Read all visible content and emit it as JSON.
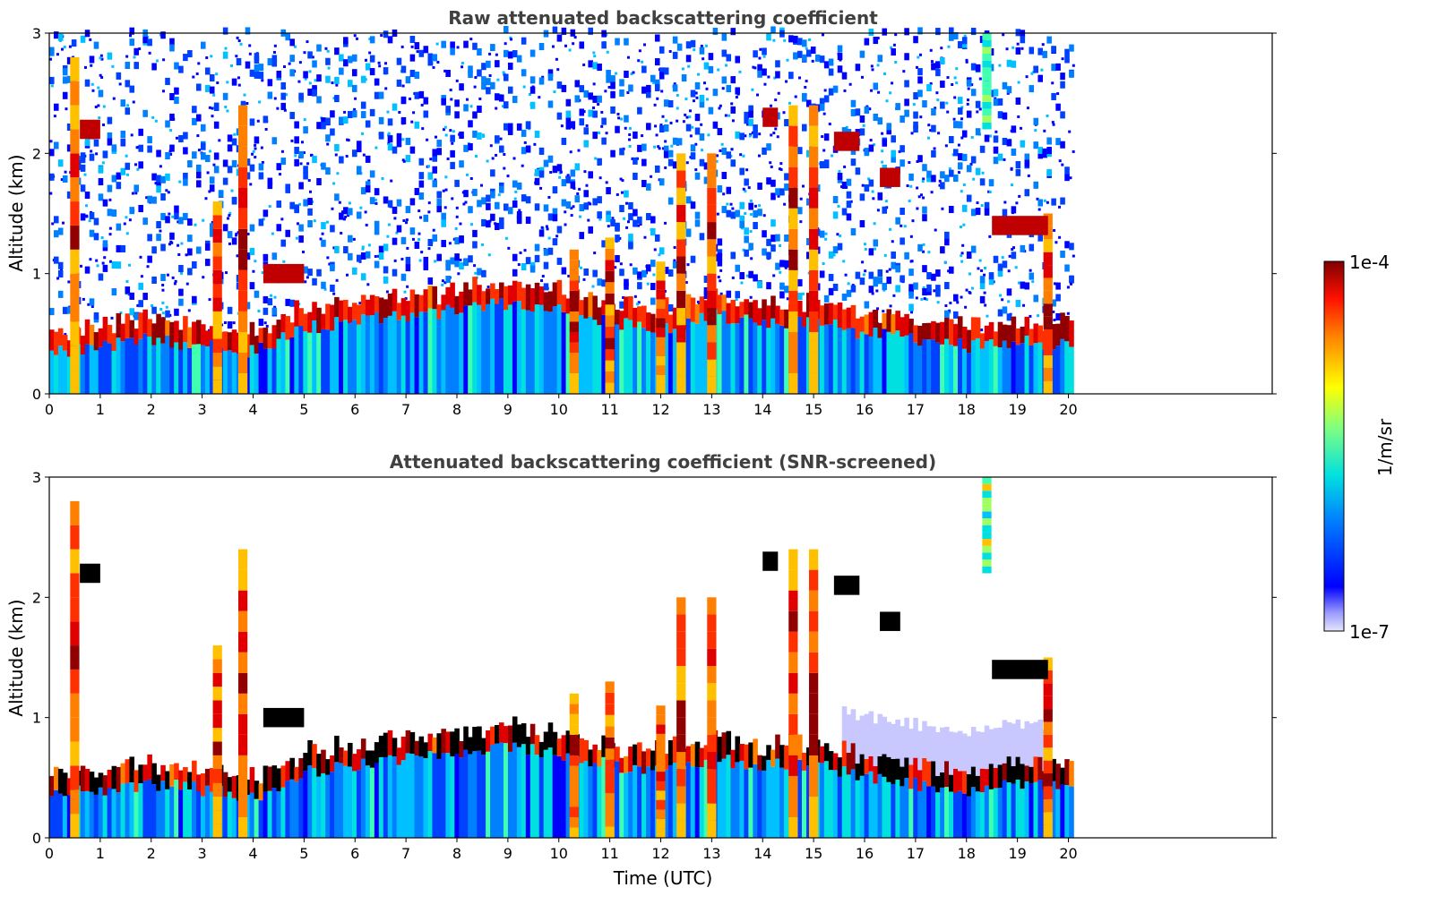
{
  "chart_data": [
    {
      "type": "heatmap",
      "title": "Raw attenuated backscattering coefficient",
      "xlabel": "",
      "ylabel": "Altitude (km)",
      "xlim": [
        0,
        24
      ],
      "ylim": [
        0,
        3
      ],
      "x_ticks": [
        "0",
        "1",
        "2",
        "3",
        "4",
        "5",
        "6",
        "7",
        "8",
        "9",
        "10",
        "11",
        "12",
        "13",
        "14",
        "15",
        "16",
        "17",
        "18",
        "19",
        "20"
      ],
      "y_ticks": [
        "0",
        "1",
        "2",
        "3"
      ],
      "data_end_time": 20.1,
      "profile": "Raw",
      "features": {
        "boundary_layer_top_km": [
          0.35,
          0.4,
          0.45,
          0.4,
          0.35,
          0.55,
          0.6,
          0.65,
          0.7,
          0.75,
          0.7,
          0.6,
          0.55,
          0.65,
          0.6,
          0.6,
          0.5,
          0.45,
          0.4,
          0.45,
          0.4
        ],
        "cloud_columns": [
          {
            "t": 0.5,
            "top": 2.8,
            "base": 0.0
          },
          {
            "t": 3.3,
            "top": 1.6,
            "base": 0.0
          },
          {
            "t": 3.8,
            "top": 2.4,
            "base": 0.0
          },
          {
            "t": 10.3,
            "top": 1.2,
            "base": 0.0
          },
          {
            "t": 11.0,
            "top": 1.3,
            "base": 0.0
          },
          {
            "t": 12.0,
            "top": 1.1,
            "base": 0.0
          },
          {
            "t": 12.4,
            "top": 2.0,
            "base": 0.0
          },
          {
            "t": 13.0,
            "top": 2.0,
            "base": 0.0
          },
          {
            "t": 14.6,
            "top": 2.4,
            "base": 0.0
          },
          {
            "t": 15.0,
            "top": 2.4,
            "base": 0.0
          },
          {
            "t": 18.4,
            "top": 3.0,
            "base": 2.2
          },
          {
            "t": 19.6,
            "top": 1.5,
            "base": 0.0
          }
        ],
        "elevated_layers": [
          {
            "t0": 0.6,
            "t1": 1.0,
            "alt": 2.2
          },
          {
            "t0": 4.2,
            "t1": 5.0,
            "alt": 1.0
          },
          {
            "t0": 14.0,
            "t1": 14.3,
            "alt": 2.3
          },
          {
            "t0": 15.4,
            "t1": 15.9,
            "alt": 2.1
          },
          {
            "t0": 16.3,
            "t1": 16.7,
            "alt": 1.8
          },
          {
            "t0": 18.5,
            "t1": 19.6,
            "alt": 1.4
          }
        ]
      }
    },
    {
      "type": "heatmap",
      "title": "Attenuated backscattering coefficient (SNR-screened)",
      "xlabel": "Time (UTC)",
      "ylabel": "Altitude (km)",
      "xlim": [
        0,
        24
      ],
      "ylim": [
        0,
        3
      ],
      "x_ticks": [
        "0",
        "1",
        "2",
        "3",
        "4",
        "5",
        "6",
        "7",
        "8",
        "9",
        "10",
        "11",
        "12",
        "13",
        "14",
        "15",
        "16",
        "17",
        "18",
        "19",
        "20"
      ],
      "y_ticks": [
        "0",
        "1",
        "2",
        "3"
      ],
      "data_end_time": 20.1,
      "profile": "SNR-screened"
    }
  ],
  "colorbar": {
    "label": "1/m/sr",
    "max_label": "1e-4",
    "min_label": "1e-7",
    "scale": "log",
    "colormap": "jet",
    "range": [
      1e-07,
      0.0001
    ]
  }
}
